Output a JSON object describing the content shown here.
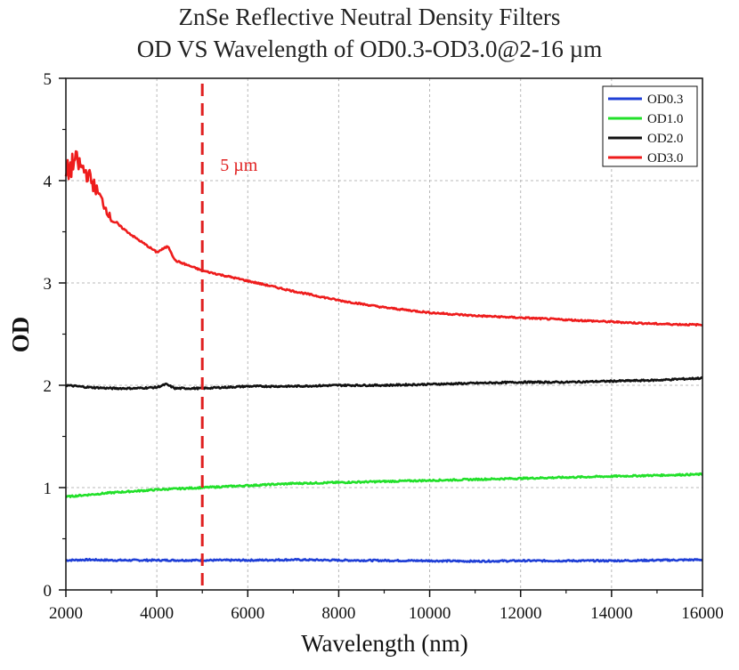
{
  "chart_data": {
    "type": "line",
    "title": "ZnSe Reflective Neutral Density Filters",
    "subtitle": "OD VS Wavelength of OD0.3-OD3.0@2-16 µm",
    "xlabel": "Wavelength (nm)",
    "ylabel": "OD",
    "xlim": [
      2000,
      16000
    ],
    "ylim": [
      0,
      5
    ],
    "xticks": [
      "2000",
      "4000",
      "6000",
      "8000",
      "10000",
      "12000",
      "14000",
      "16000"
    ],
    "yticks": [
      "0",
      "1",
      "2",
      "3",
      "4",
      "5"
    ],
    "grid": true,
    "legend": "top-right",
    "annotation": {
      "text": "5 µm",
      "x": 5000,
      "color": "#e02020"
    },
    "series": [
      {
        "name": "OD0.3",
        "color": "#1f3fd6",
        "x": [
          2000,
          2500,
          3000,
          4000,
          5000,
          6000,
          7000,
          8000,
          10000,
          11000,
          12000,
          13000,
          14000,
          15000,
          16000
        ],
        "y": [
          0.29,
          0.295,
          0.29,
          0.29,
          0.29,
          0.29,
          0.295,
          0.29,
          0.285,
          0.28,
          0.285,
          0.285,
          0.285,
          0.29,
          0.295
        ]
      },
      {
        "name": "OD1.0",
        "color": "#22e02a",
        "x": [
          2000,
          3000,
          4000,
          5000,
          6000,
          7000,
          8000,
          9000,
          10000,
          11000,
          12000,
          13000,
          14000,
          15000,
          16000
        ],
        "y": [
          0.91,
          0.95,
          0.98,
          1.0,
          1.02,
          1.04,
          1.05,
          1.06,
          1.07,
          1.08,
          1.09,
          1.1,
          1.11,
          1.12,
          1.13
        ]
      },
      {
        "name": "OD2.0",
        "color": "#111111",
        "x": [
          2000,
          2500,
          3000,
          3500,
          4000,
          4200,
          4400,
          5000,
          6000,
          7000,
          8000,
          9000,
          10000,
          11000,
          12000,
          13000,
          14000,
          15000,
          16000
        ],
        "y": [
          2.0,
          1.98,
          1.97,
          1.97,
          1.98,
          2.01,
          1.97,
          1.97,
          1.99,
          1.99,
          2.0,
          2.0,
          2.01,
          2.02,
          2.03,
          2.03,
          2.04,
          2.05,
          2.07
        ]
      },
      {
        "name": "OD3.0",
        "color": "#ee1c1c",
        "x": [
          2000,
          2200,
          2500,
          2800,
          3000,
          3500,
          4000,
          4250,
          4400,
          5000,
          6000,
          7000,
          8000,
          9000,
          10000,
          11000,
          12000,
          13000,
          14000,
          15000,
          16000
        ],
        "y": [
          4.05,
          4.2,
          4.05,
          3.8,
          3.62,
          3.45,
          3.3,
          3.36,
          3.22,
          3.12,
          3.02,
          2.92,
          2.83,
          2.76,
          2.71,
          2.68,
          2.66,
          2.64,
          2.62,
          2.6,
          2.59
        ]
      }
    ]
  }
}
